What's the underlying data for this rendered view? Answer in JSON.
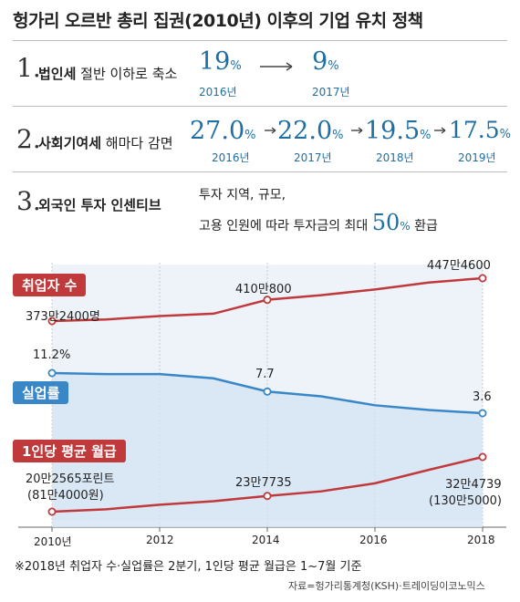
{
  "title": "헝가리 오르반 총리 집권(2010년) 이후의 기업 유치 정책",
  "policies": [
    {
      "num": "1.",
      "label_bold": "법인세",
      "label_rest": " 절반 이하로 축소"
    },
    {
      "num": "2.",
      "label_bold": "사회기여세",
      "label_rest": " 해마다 감면"
    },
    {
      "num": "3.",
      "label_bold": "외국인 투자 인센티브",
      "label_rest": ""
    }
  ],
  "p1_values": [
    {
      "value": "19",
      "unit": "%",
      "year": "2016년"
    },
    {
      "value": "9",
      "unit": "%",
      "year": "2017년"
    }
  ],
  "p2_values": [
    {
      "value": "27.0",
      "unit": "%",
      "year": "2016년"
    },
    {
      "value": "22.0",
      "unit": "%",
      "year": "2017년"
    },
    {
      "value": "19.5",
      "unit": "%",
      "year": "2018년"
    },
    {
      "value": "17.5",
      "unit": "%",
      "year": "2019년"
    }
  ],
  "p3_text": {
    "line1": "투자 지역, 규모,",
    "line2_pre": "고용 인원에 따라 투자금의 최대 ",
    "line2_num": "50",
    "line2_unit": "%",
    "line2_post": " 환급"
  },
  "chart_data": {
    "type": "line",
    "x": [
      2010,
      2011,
      2012,
      2013,
      2014,
      2015,
      2016,
      2017,
      2018
    ],
    "x_tick_labels": [
      "2010년",
      "2012",
      "2014",
      "2016",
      "2018"
    ],
    "series": [
      {
        "name": "취업자 수",
        "unit": "만명",
        "color": "#c0393b",
        "values": [
          373.24,
          376,
          382,
          386,
          410.08,
          418,
          428,
          440,
          447.46
        ],
        "labels": {
          "start": "373만2400명",
          "mid": "410만800",
          "end": "447만4600"
        }
      },
      {
        "name": "실업률",
        "unit": "%",
        "color": "#3a87c8",
        "values": [
          11.2,
          11.0,
          11.0,
          10.2,
          7.7,
          6.8,
          5.1,
          4.2,
          3.6
        ],
        "labels": {
          "start": "11.2%",
          "mid": "7.7",
          "end": "3.6"
        }
      },
      {
        "name": "1인당 평균 월급",
        "unit": "포린트",
        "color": "#c0393b",
        "values": [
          20.2565,
          20.8,
          21.8,
          22.6,
          23.7735,
          24.8,
          26.6,
          29.6,
          32.4739
        ],
        "labels": {
          "start": "20만2565포린트",
          "start2": "(81만4000원)",
          "mid": "23만7735",
          "end": "32만4739",
          "end2": "(130만5000)"
        }
      }
    ],
    "note": "※2018년 취업자 수·실업률은 2분기, 1인당 평균 월급은 1~7월 기준",
    "source": "자료=헝가리통계청(KSH)·트레이딩이코노믹스"
  }
}
